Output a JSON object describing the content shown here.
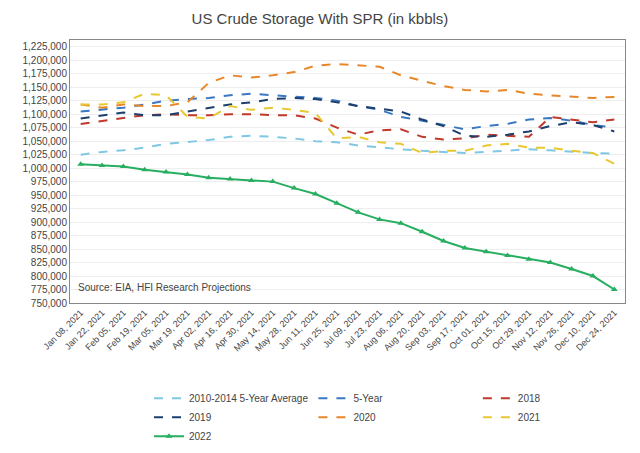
{
  "chart_data": {
    "type": "line",
    "title": "US Crude Storage With SPR (in kbbls)",
    "annotations": [
      "Source: EIA, HFI Research Projections"
    ],
    "categories": [
      "Jan 08, 2021",
      "Jan 22, 2021",
      "Feb 05, 2021",
      "Feb 19, 2021",
      "Mar 05, 2021",
      "Mar 19, 2021",
      "Apr 02, 2021",
      "Apr 16, 2021",
      "Apr 30, 2021",
      "May 14, 2021",
      "May 28, 2021",
      "Jun 11, 2021",
      "Jun 25, 2021",
      "Jul 09, 2021",
      "Jul 23, 2021",
      "Aug 06, 2021",
      "Aug 20, 2021",
      "Sep 03, 2021",
      "Sep 17, 2021",
      "Oct 01, 2021",
      "Oct 15, 2021",
      "Oct 29, 2021",
      "Nov 12, 2021",
      "Nov 26, 2021",
      "Dec 10, 2021",
      "Dec 24, 2021"
    ],
    "series": [
      {
        "name": "2010-2014 5-Year Average",
        "color": "#7ec8e3",
        "line_style": "dashed",
        "values": [
          1025000,
          1030000,
          1033000,
          1038000,
          1045000,
          1048000,
          1052000,
          1058000,
          1060000,
          1058000,
          1055000,
          1050000,
          1048000,
          1042000,
          1038000,
          1035000,
          1032000,
          1030000,
          1028000,
          1030000,
          1033000,
          1035000,
          1033000,
          1030000,
          1028000,
          1027000
        ]
      },
      {
        "name": "5-Year",
        "color": "#3b78c3",
        "line_style": "dashed",
        "values": [
          1105000,
          1108000,
          1112000,
          1118000,
          1125000,
          1128000,
          1130000,
          1135000,
          1138000,
          1135000,
          1132000,
          1130000,
          1125000,
          1115000,
          1108000,
          1095000,
          1088000,
          1080000,
          1072000,
          1078000,
          1082000,
          1090000,
          1093000,
          1088000,
          1080000,
          1075000
        ]
      },
      {
        "name": "2018",
        "color": "#c0392b",
        "line_style": "dashed",
        "values": [
          1082000,
          1088000,
          1093000,
          1098000,
          1100000,
          1098000,
          1098000,
          1100000,
          1100000,
          1098000,
          1098000,
          1092000,
          1075000,
          1062000,
          1070000,
          1072000,
          1058000,
          1053000,
          1055000,
          1062000,
          1060000,
          1058000,
          1095000,
          1090000,
          1085000,
          1090000
        ]
      },
      {
        "name": "2019",
        "color": "#1c3f6e",
        "line_style": "dashed",
        "values": [
          1092000,
          1098000,
          1103000,
          1098000,
          1098000,
          1105000,
          1112000,
          1118000,
          1122000,
          1128000,
          1130000,
          1128000,
          1122000,
          1115000,
          1110000,
          1105000,
          1090000,
          1078000,
          1060000,
          1058000,
          1062000,
          1068000,
          1078000,
          1085000,
          1080000,
          1068000
        ]
      },
      {
        "name": "2020",
        "color": "#e8872a",
        "line_style": "dashed",
        "values": [
          1118000,
          1112000,
          1118000,
          1115000,
          1115000,
          1122000,
          1158000,
          1172000,
          1168000,
          1172000,
          1178000,
          1190000,
          1193000,
          1190000,
          1188000,
          1172000,
          1162000,
          1152000,
          1145000,
          1142000,
          1145000,
          1138000,
          1135000,
          1132000,
          1130000,
          1132000
        ]
      },
      {
        "name": "2021",
        "color": "#e8c830",
        "line_style": "dashed",
        "values": [
          1118000,
          1118000,
          1122000,
          1138000,
          1135000,
          1095000,
          1092000,
          1115000,
          1108000,
          1112000,
          1108000,
          1102000,
          1055000,
          1058000,
          1048000,
          1045000,
          1028000,
          1032000,
          1032000,
          1042000,
          1045000,
          1038000,
          1038000,
          1032000,
          1028000,
          1008000
        ]
      },
      {
        "name": "2022",
        "color": "#27ae60",
        "line_style": "solid",
        "marker": "triangle-up",
        "values": [
          1007000,
          1005000,
          1003000,
          997000,
          993000,
          988000,
          982000,
          980000,
          977000,
          975000,
          963000,
          952000,
          935000,
          918000,
          905000,
          898000,
          882000,
          865000,
          852000,
          845000,
          838000,
          831000,
          825000,
          813000,
          800000,
          775000
        ]
      }
    ],
    "ylim": [
      750000,
      1237500
    ],
    "yticks": [
      {
        "value": 750000,
        "label": "750,000"
      },
      {
        "value": 775000,
        "label": "775,000"
      },
      {
        "value": 800000,
        "label": "800,000"
      },
      {
        "value": 825000,
        "label": "825,000"
      },
      {
        "value": 850000,
        "label": "850,000"
      },
      {
        "value": 875000,
        "label": "875,000"
      },
      {
        "value": 900000,
        "label": "900,000"
      },
      {
        "value": 925000,
        "label": "925,000"
      },
      {
        "value": 950000,
        "label": "950,000"
      },
      {
        "value": 975000,
        "label": "975,000"
      },
      {
        "value": 1000000,
        "label": "1,000,000"
      },
      {
        "value": 1025000,
        "label": "1,025,000"
      },
      {
        "value": 1050000,
        "label": "1,050,000"
      },
      {
        "value": 1075000,
        "label": "1,075,000"
      },
      {
        "value": 1100000,
        "label": "1,100,000"
      },
      {
        "value": 1125000,
        "label": "1,125,000"
      },
      {
        "value": 1150000,
        "label": "1,150,000"
      },
      {
        "value": 1175000,
        "label": "1,175,000"
      },
      {
        "value": 1200000,
        "label": "1,200,000"
      },
      {
        "value": 1225000,
        "label": "1,225,000"
      }
    ],
    "grid": "y",
    "legend": "bottom"
  }
}
